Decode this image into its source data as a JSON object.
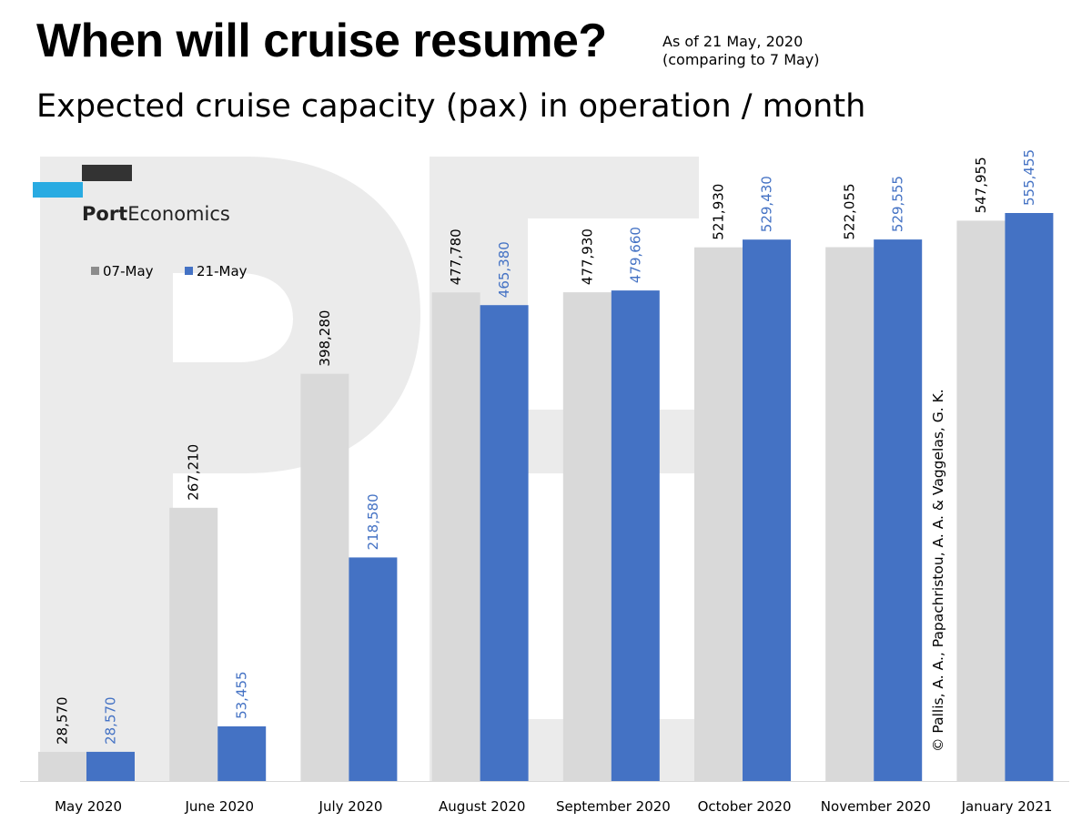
{
  "header": {
    "title": "When will cruise resume?",
    "as_of_line1": "As of 21 May, 2020",
    "as_of_line2": "(comparing to 7 May)",
    "subtitle": "Expected cruise capacity (pax) in operation / month"
  },
  "logo": {
    "bold": "Port",
    "regular": "Economics"
  },
  "credit": "© Pallis, A. A., Papachristou, A. A. & Vaggelas, G. K.",
  "colors": {
    "series_07_may": "#d9d9d9",
    "series_21_may": "#4472c4",
    "label_07_may": "#000000",
    "label_21_may": "#4472c4",
    "watermark": "#ebebeb",
    "logo_dark": "#333333",
    "logo_blue": "#29abe2"
  },
  "chart_data": {
    "type": "bar",
    "categories": [
      "May 2020",
      "June 2020",
      "July 2020",
      "August 2020",
      "September 2020",
      "October 2020",
      "November 2020",
      "January 2021"
    ],
    "series": [
      {
        "name": "07-May",
        "values": [
          28570,
          267210,
          398280,
          477780,
          477930,
          521930,
          522055,
          547955
        ],
        "labels": [
          "28,570",
          "267,210",
          "398,280",
          "477,780",
          "477,930",
          "521,930",
          "522,055",
          "547,955"
        ]
      },
      {
        "name": "21-May",
        "values": [
          28570,
          53455,
          218580,
          465380,
          479660,
          529430,
          529555,
          555455
        ],
        "labels": [
          "28,570",
          "53,455",
          "218,580",
          "465,380",
          "479,660",
          "529,430",
          "529,555",
          "555,455"
        ]
      }
    ],
    "ylim": [
      0,
      555455
    ],
    "legend": "top-left",
    "grid": false
  }
}
